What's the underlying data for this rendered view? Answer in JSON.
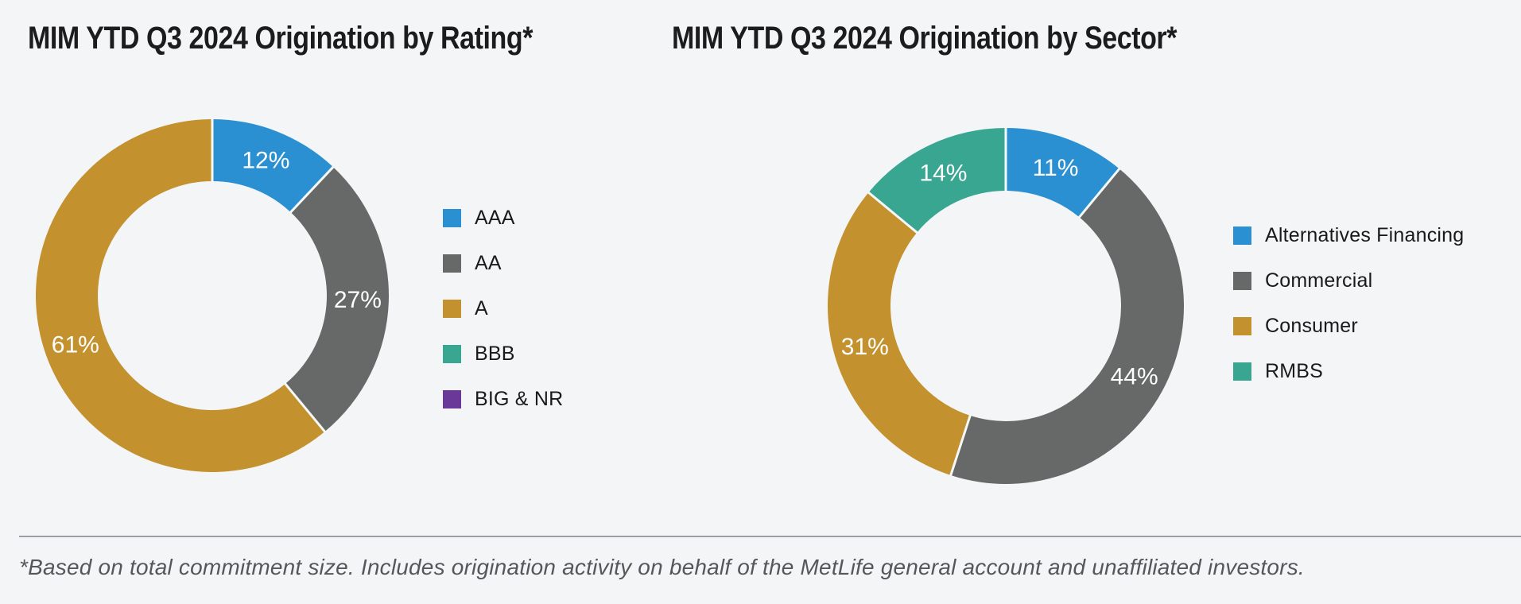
{
  "page": {
    "background": "#f4f5f6",
    "footnote": "*Based on total commitment size. Includes origination activity on behalf of the MetLife general account and unaffiliated investors."
  },
  "colors": {
    "blue": "#2a90d1",
    "gray": "#676868",
    "gold": "#c3922e",
    "teal": "#39a692",
    "purple": "#6a3899",
    "label_text": "#ffffff",
    "separator": "#f7f8f8"
  },
  "chart_data": [
    {
      "type": "pie",
      "variant": "donut",
      "title": "MIM YTD Q3 2024 Origination by Rating*",
      "legend_position": "right",
      "slices": [
        {
          "label": "AAA",
          "value": 12,
          "display": "12%",
          "color": "#2a90d1"
        },
        {
          "label": "AA",
          "value": 27,
          "display": "27%",
          "color": "#676868"
        },
        {
          "label": "A",
          "value": 61,
          "display": "61%",
          "color": "#c3922e"
        },
        {
          "label": "BBB",
          "value": 0,
          "display": "",
          "color": "#39a692"
        },
        {
          "label": "BIG & NR",
          "value": 0,
          "display": "",
          "color": "#6a3899"
        }
      ]
    },
    {
      "type": "pie",
      "variant": "donut",
      "title": "MIM YTD Q3 2024 Origination by Sector*",
      "legend_position": "right",
      "slices": [
        {
          "label": "Alternatives Financing",
          "value": 11,
          "display": "11%",
          "color": "#2a90d1"
        },
        {
          "label": "Commercial",
          "value": 44,
          "display": "44%",
          "color": "#676868"
        },
        {
          "label": "Consumer",
          "value": 31,
          "display": "31%",
          "color": "#c3922e"
        },
        {
          "label": "RMBS",
          "value": 14,
          "display": "14%",
          "color": "#39a692"
        }
      ]
    }
  ]
}
